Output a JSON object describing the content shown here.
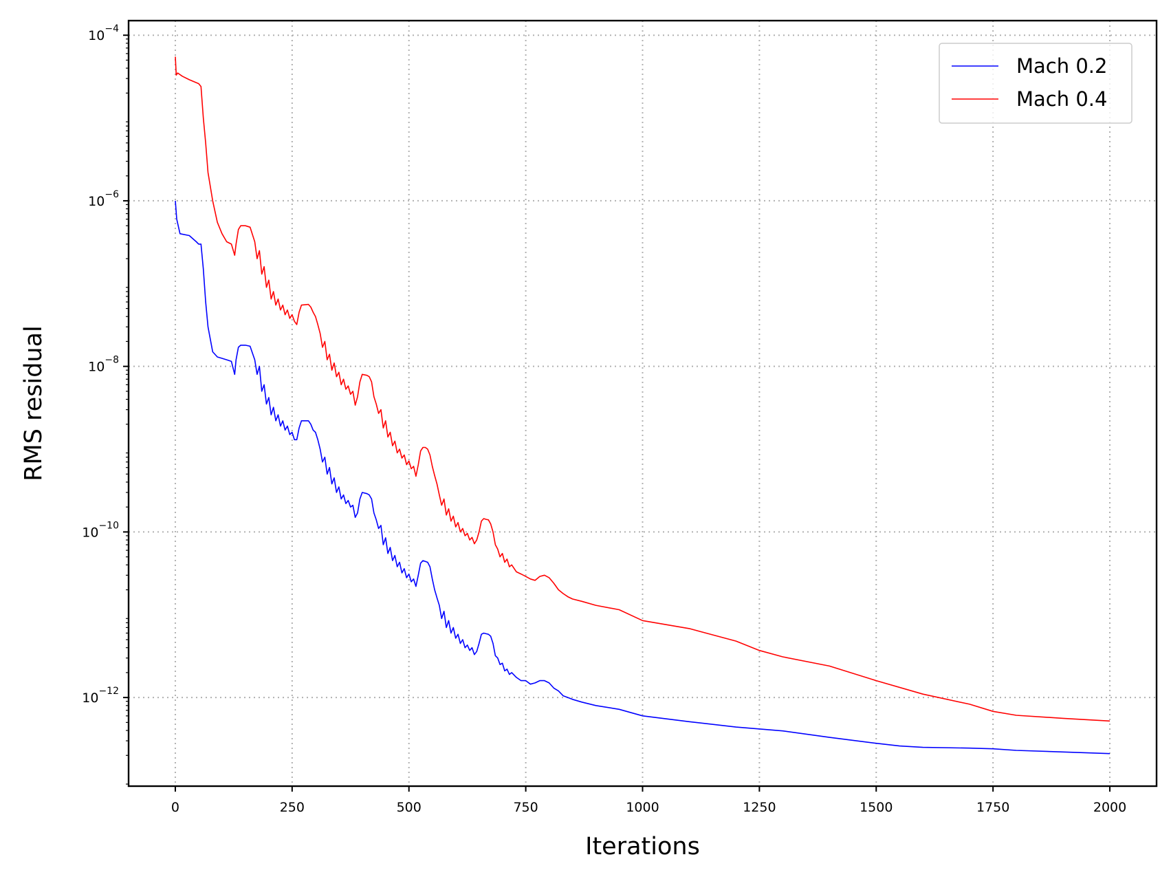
{
  "chart_data": {
    "type": "line",
    "title": "",
    "xlabel": "Iterations",
    "ylabel": "RMS residual",
    "xlim": [
      -100,
      2100
    ],
    "ylim": [
      8.5e-14,
      0.00015
    ],
    "yscale": "log",
    "grid": true,
    "legend_position": "top-right",
    "x_ticks": [
      0,
      250,
      500,
      750,
      1000,
      1250,
      1500,
      1750,
      2000
    ],
    "x_tick_labels": [
      "0",
      "250",
      "500",
      "750",
      "1000",
      "1250",
      "1500",
      "1750",
      "2000"
    ],
    "y_ticks": [
      1e-12,
      1e-10,
      1e-08,
      1e-06,
      0.0001
    ],
    "y_tick_labels": [
      {
        "base": "10",
        "exp": "−12"
      },
      {
        "base": "10",
        "exp": "−10"
      },
      {
        "base": "10",
        "exp": "−8"
      },
      {
        "base": "10",
        "exp": "−6"
      },
      {
        "base": "10",
        "exp": "−4"
      }
    ],
    "series": [
      {
        "name": "Mach 0.2",
        "color": "#0000ff",
        "x": [
          0,
          3,
          10,
          30,
          45,
          50,
          55,
          60,
          65,
          70,
          80,
          90,
          100,
          110,
          120,
          127,
          130,
          135,
          140,
          150,
          160,
          170,
          175,
          180,
          185,
          190,
          195,
          200,
          205,
          210,
          215,
          220,
          225,
          230,
          235,
          240,
          245,
          250,
          255,
          260,
          265,
          270,
          285,
          290,
          295,
          300,
          305,
          310,
          315,
          320,
          325,
          330,
          335,
          340,
          345,
          350,
          355,
          360,
          365,
          370,
          375,
          380,
          385,
          390,
          395,
          400,
          410,
          415,
          420,
          425,
          430,
          435,
          440,
          445,
          450,
          455,
          460,
          465,
          470,
          475,
          480,
          485,
          490,
          495,
          500,
          505,
          510,
          515,
          520,
          525,
          530,
          535,
          540,
          545,
          550,
          555,
          560,
          565,
          570,
          575,
          580,
          585,
          590,
          595,
          600,
          605,
          610,
          615,
          620,
          625,
          630,
          635,
          640,
          645,
          650,
          655,
          660,
          665,
          670,
          675,
          680,
          685,
          690,
          695,
          700,
          705,
          710,
          715,
          720,
          730,
          740,
          750,
          760,
          770,
          780,
          790,
          800,
          810,
          820,
          830,
          840,
          850,
          870,
          900,
          950,
          1000,
          1100,
          1200,
          1300,
          1400,
          1500,
          1550,
          1600,
          1700,
          1750,
          1800,
          1900,
          2000
        ],
        "y": [
          1e-06,
          6e-07,
          4e-07,
          3.8e-07,
          3.2e-07,
          3e-07,
          3e-07,
          1.5e-07,
          6e-08,
          3e-08,
          1.5e-08,
          1.3e-08,
          1.25e-08,
          1.2e-08,
          1.15e-08,
          8e-09,
          1.2e-08,
          1.7e-08,
          1.8e-08,
          1.8e-08,
          1.75e-08,
          1.2e-08,
          8e-09,
          1e-08,
          5e-09,
          6e-09,
          3.5e-09,
          4.2e-09,
          2.6e-09,
          3.2e-09,
          2.2e-09,
          2.6e-09,
          1.9e-09,
          2.2e-09,
          1.7e-09,
          1.9e-09,
          1.5e-09,
          1.6e-09,
          1.3e-09,
          1.3e-09,
          1.8e-09,
          2.2e-09,
          2.2e-09,
          2e-09,
          1.7e-09,
          1.6e-09,
          1.3e-09,
          1e-09,
          7e-10,
          8e-10,
          5e-10,
          6e-10,
          3.8e-10,
          4.5e-10,
          3e-10,
          3.5e-10,
          2.5e-10,
          2.8e-10,
          2.2e-10,
          2.4e-10,
          2e-10,
          2.1e-10,
          1.5e-10,
          1.7e-10,
          2.5e-10,
          3e-10,
          2.9e-10,
          2.8e-10,
          2.5e-10,
          1.7e-10,
          1.4e-10,
          1.1e-10,
          1.2e-10,
          7e-11,
          8.5e-11,
          5.5e-11,
          6.5e-11,
          4.5e-11,
          5.2e-11,
          3.8e-11,
          4.3e-11,
          3.2e-11,
          3.6e-11,
          2.8e-11,
          3.1e-11,
          2.5e-11,
          2.7e-11,
          2.2e-11,
          3e-11,
          4.2e-11,
          4.5e-11,
          4.4e-11,
          4.3e-11,
          3.8e-11,
          2.7e-11,
          2e-11,
          1.6e-11,
          1.3e-11,
          9e-12,
          1.1e-11,
          7e-12,
          8.5e-12,
          6e-12,
          7e-12,
          5.2e-12,
          5.8e-12,
          4.5e-12,
          5e-12,
          4e-12,
          4.3e-12,
          3.7e-12,
          4e-12,
          3.3e-12,
          3.6e-12,
          4.5e-12,
          5.8e-12,
          6e-12,
          5.9e-12,
          5.8e-12,
          5.5e-12,
          4.5e-12,
          3.2e-12,
          3e-12,
          2.5e-12,
          2.6e-12,
          2.1e-12,
          2.2e-12,
          1.9e-12,
          2e-12,
          1.75e-12,
          1.6e-12,
          1.6e-12,
          1.45e-12,
          1.5e-12,
          1.6e-12,
          1.6e-12,
          1.5e-12,
          1.3e-12,
          1.2e-12,
          1.05e-12,
          1e-12,
          9.5e-13,
          8.8e-13,
          8e-13,
          7.2e-13,
          6e-13,
          5.1e-13,
          4.4e-13,
          3.95e-13,
          3.3e-13,
          2.8e-13,
          2.6e-13,
          2.5e-13,
          2.45e-13,
          2.4e-13,
          2.3e-13,
          2.2e-13,
          2.1e-13
        ]
      },
      {
        "name": "Mach 0.4",
        "color": "#ff0000",
        "x": [
          0,
          2,
          5,
          15,
          30,
          50,
          55,
          60,
          65,
          70,
          80,
          90,
          100,
          110,
          120,
          127,
          130,
          135,
          140,
          150,
          160,
          170,
          175,
          180,
          185,
          190,
          195,
          200,
          205,
          210,
          215,
          220,
          225,
          230,
          235,
          240,
          245,
          250,
          255,
          260,
          265,
          270,
          285,
          290,
          295,
          300,
          305,
          310,
          315,
          320,
          325,
          330,
          335,
          340,
          345,
          350,
          355,
          360,
          365,
          370,
          375,
          380,
          385,
          390,
          395,
          400,
          410,
          415,
          420,
          425,
          430,
          435,
          440,
          445,
          450,
          455,
          460,
          465,
          470,
          475,
          480,
          485,
          490,
          495,
          500,
          505,
          510,
          515,
          520,
          525,
          530,
          535,
          540,
          545,
          550,
          555,
          560,
          565,
          570,
          575,
          580,
          585,
          590,
          595,
          600,
          605,
          610,
          615,
          620,
          625,
          630,
          635,
          640,
          645,
          650,
          655,
          660,
          665,
          670,
          675,
          680,
          685,
          690,
          695,
          700,
          705,
          710,
          715,
          720,
          730,
          740,
          750,
          760,
          770,
          780,
          790,
          800,
          810,
          820,
          830,
          840,
          850,
          870,
          900,
          950,
          1000,
          1100,
          1200,
          1250,
          1300,
          1400,
          1500,
          1600,
          1700,
          1750,
          1800,
          1900,
          2000
        ],
        "y": [
          5.5e-05,
          3.3e-05,
          3.5e-05,
          3.2e-05,
          2.9e-05,
          2.6e-05,
          2.4e-05,
          1e-05,
          5e-06,
          2.2e-06,
          1e-06,
          5.5e-07,
          4e-07,
          3.2e-07,
          3e-07,
          2.2e-07,
          3e-07,
          4.5e-07,
          5e-07,
          5e-07,
          4.8e-07,
          3.2e-07,
          2e-07,
          2.5e-07,
          1.3e-07,
          1.6e-07,
          9e-08,
          1.1e-07,
          6.5e-08,
          8e-08,
          5.5e-08,
          6.5e-08,
          4.8e-08,
          5.5e-08,
          4.2e-08,
          4.8e-08,
          3.8e-08,
          4.2e-08,
          3.5e-08,
          3.2e-08,
          4.5e-08,
          5.5e-08,
          5.6e-08,
          5.2e-08,
          4.5e-08,
          4e-08,
          3.2e-08,
          2.5e-08,
          1.7e-08,
          2e-08,
          1.2e-08,
          1.4e-08,
          9e-09,
          1.1e-08,
          7.5e-09,
          8.5e-09,
          6e-09,
          7e-09,
          5.3e-09,
          5.8e-09,
          4.6e-09,
          5e-09,
          3.4e-09,
          4.3e-09,
          6.5e-09,
          8e-09,
          7.8e-09,
          7.5e-09,
          6.5e-09,
          4.3e-09,
          3.5e-09,
          2.7e-09,
          3e-09,
          1.8e-09,
          2.2e-09,
          1.4e-09,
          1.6e-09,
          1.1e-09,
          1.25e-09,
          9e-10,
          1e-09,
          7.8e-10,
          8.5e-10,
          6.5e-10,
          7.2e-10,
          5.8e-10,
          6.2e-10,
          4.7e-10,
          6.5e-10,
          9.5e-10,
          1.05e-09,
          1.05e-09,
          1e-09,
          8.5e-10,
          6.2e-10,
          4.8e-10,
          3.8e-10,
          2.8e-10,
          2.1e-10,
          2.5e-10,
          1.6e-10,
          1.9e-10,
          1.35e-10,
          1.55e-10,
          1.15e-10,
          1.3e-10,
          1e-10,
          1.1e-10,
          9e-11,
          9.6e-11,
          8e-11,
          8.6e-11,
          7.2e-11,
          8e-11,
          1e-10,
          1.35e-10,
          1.45e-10,
          1.42e-10,
          1.4e-10,
          1.25e-10,
          1e-10,
          7e-11,
          6.2e-11,
          5e-11,
          5.5e-11,
          4.3e-11,
          4.7e-11,
          3.8e-11,
          4e-11,
          3.3e-11,
          3.1e-11,
          2.9e-11,
          2.7e-11,
          2.6e-11,
          2.9e-11,
          3e-11,
          2.8e-11,
          2.4e-11,
          2e-11,
          1.8e-11,
          1.65e-11,
          1.55e-11,
          1.45e-11,
          1.3e-11,
          1.15e-11,
          8.5e-12,
          6.8e-12,
          4.8e-12,
          3.7e-12,
          3.1e-12,
          2.4e-12,
          1.6e-12,
          1.1e-12,
          8.3e-13,
          6.8e-13,
          6.1e-13,
          5.6e-13,
          5.2e-13
        ]
      }
    ]
  }
}
